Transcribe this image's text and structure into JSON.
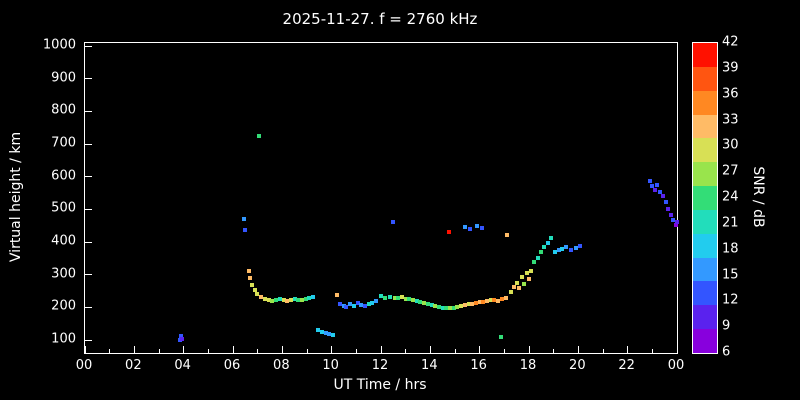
{
  "title": "2025-11-27. f = 2760 kHz",
  "colors": {
    "background": "#000000",
    "foreground": "#ffffff"
  },
  "chart_data": {
    "type": "scatter",
    "title": "2025-11-27. f = 2760 kHz",
    "xlabel": "UT Time / hrs",
    "ylabel": "Virtual height / km",
    "xlim": [
      0,
      24
    ],
    "ylim": [
      100,
      1000
    ],
    "grid": false,
    "x_tick_hours": [
      0,
      2,
      4,
      6,
      8,
      10,
      12,
      14,
      16,
      18,
      20,
      22,
      24
    ],
    "x_tick_labels": [
      "00",
      "02",
      "04",
      "06",
      "08",
      "10",
      "12",
      "14",
      "16",
      "18",
      "20",
      "22",
      "00"
    ],
    "y_ticks": [
      100,
      200,
      300,
      400,
      500,
      600,
      700,
      800,
      900,
      1000
    ],
    "colorbar": {
      "label": "SNR / dB",
      "ticks": [
        6,
        9,
        12,
        15,
        18,
        21,
        24,
        27,
        30,
        33,
        36,
        39,
        42
      ],
      "palette": [
        {
          "v": 6,
          "color": "#8800dd"
        },
        {
          "v": 9,
          "color": "#5a22ee"
        },
        {
          "v": 12,
          "color": "#3355ff"
        },
        {
          "v": 15,
          "color": "#3399ff"
        },
        {
          "v": 18,
          "color": "#22ccee"
        },
        {
          "v": 21,
          "color": "#22ddbb"
        },
        {
          "v": 24,
          "color": "#33dd77"
        },
        {
          "v": 27,
          "color": "#99e44c"
        },
        {
          "v": 30,
          "color": "#d8e055"
        },
        {
          "v": 33,
          "color": "#ffbb66"
        },
        {
          "v": 36,
          "color": "#ff8822"
        },
        {
          "v": 39,
          "color": "#ff5511"
        },
        {
          "v": 42,
          "color": "#ff1100"
        }
      ]
    },
    "points": [
      [
        3.85,
        100,
        12
      ],
      [
        3.9,
        112,
        12
      ],
      [
        3.95,
        104,
        9
      ],
      [
        6.45,
        470,
        15
      ],
      [
        6.5,
        438,
        12
      ],
      [
        6.65,
        310,
        33
      ],
      [
        6.7,
        290,
        33
      ],
      [
        6.78,
        268,
        30
      ],
      [
        6.88,
        252,
        30
      ],
      [
        6.98,
        242,
        30
      ],
      [
        7.05,
        725,
        24
      ],
      [
        7.15,
        232,
        33
      ],
      [
        7.3,
        226,
        30
      ],
      [
        7.45,
        222,
        30
      ],
      [
        7.6,
        220,
        27
      ],
      [
        7.75,
        221,
        24
      ],
      [
        7.9,
        224,
        21
      ],
      [
        8.05,
        221,
        30
      ],
      [
        8.2,
        219,
        33
      ],
      [
        8.35,
        221,
        30
      ],
      [
        8.5,
        224,
        21
      ],
      [
        8.65,
        221,
        24
      ],
      [
        8.8,
        223,
        27
      ],
      [
        8.95,
        226,
        24
      ],
      [
        9.1,
        228,
        21
      ],
      [
        9.25,
        231,
        18
      ],
      [
        9.45,
        130,
        18
      ],
      [
        9.6,
        126,
        18
      ],
      [
        9.75,
        121,
        15
      ],
      [
        9.9,
        118,
        15
      ],
      [
        10.05,
        115,
        18
      ],
      [
        10.2,
        238,
        33
      ],
      [
        10.35,
        210,
        12
      ],
      [
        10.5,
        205,
        15
      ],
      [
        10.6,
        200,
        12
      ],
      [
        10.75,
        209,
        15
      ],
      [
        10.9,
        204,
        18
      ],
      [
        11.05,
        213,
        12
      ],
      [
        11.2,
        208,
        15
      ],
      [
        11.35,
        204,
        12
      ],
      [
        11.5,
        209,
        21
      ],
      [
        11.65,
        214,
        18
      ],
      [
        11.8,
        219,
        15
      ],
      [
        12.0,
        236,
        21
      ],
      [
        12.15,
        230,
        24
      ],
      [
        12.5,
        460,
        12
      ],
      [
        12.35,
        232,
        21
      ],
      [
        12.55,
        230,
        27
      ],
      [
        12.7,
        229,
        24
      ],
      [
        12.85,
        231,
        30
      ],
      [
        13.0,
        227,
        27
      ],
      [
        13.15,
        224,
        24
      ],
      [
        13.3,
        222,
        27
      ],
      [
        13.45,
        219,
        21
      ],
      [
        13.6,
        216,
        24
      ],
      [
        13.75,
        213,
        27
      ],
      [
        13.9,
        210,
        24
      ],
      [
        14.05,
        207,
        21
      ],
      [
        14.2,
        203,
        27
      ],
      [
        14.35,
        200,
        24
      ],
      [
        14.5,
        198,
        21
      ],
      [
        14.65,
        197,
        24
      ],
      [
        14.8,
        197,
        27
      ],
      [
        14.95,
        198,
        24
      ],
      [
        14.75,
        430,
        42
      ],
      [
        15.4,
        446,
        15
      ],
      [
        15.6,
        440,
        12
      ],
      [
        15.9,
        450,
        15
      ],
      [
        16.1,
        444,
        12
      ],
      [
        15.1,
        200,
        27
      ],
      [
        15.25,
        203,
        30
      ],
      [
        15.4,
        206,
        33
      ],
      [
        15.55,
        209,
        30
      ],
      [
        15.7,
        211,
        33
      ],
      [
        15.85,
        213,
        36
      ],
      [
        16.0,
        215,
        33
      ],
      [
        16.15,
        217,
        36
      ],
      [
        16.3,
        219,
        33
      ],
      [
        16.45,
        221,
        30
      ],
      [
        16.6,
        223,
        36
      ],
      [
        16.75,
        220,
        33
      ],
      [
        16.9,
        225,
        36
      ],
      [
        17.05,
        230,
        33
      ],
      [
        16.85,
        110,
        24
      ],
      [
        17.1,
        420,
        33
      ],
      [
        17.25,
        248,
        30
      ],
      [
        17.4,
        262,
        33
      ],
      [
        17.5,
        276,
        30
      ],
      [
        17.6,
        258,
        33
      ],
      [
        17.7,
        292,
        30
      ],
      [
        17.8,
        270,
        27
      ],
      [
        17.9,
        305,
        30
      ],
      [
        18.0,
        288,
        33
      ],
      [
        18.1,
        312,
        30
      ],
      [
        18.2,
        338,
        24
      ],
      [
        18.35,
        352,
        21
      ],
      [
        18.5,
        368,
        24
      ],
      [
        18.6,
        384,
        21
      ],
      [
        18.75,
        398,
        18
      ],
      [
        18.9,
        412,
        21
      ],
      [
        19.05,
        368,
        18
      ],
      [
        19.2,
        374,
        15
      ],
      [
        19.35,
        379,
        18
      ],
      [
        19.5,
        384,
        15
      ],
      [
        19.7,
        376,
        12
      ],
      [
        19.9,
        382,
        15
      ],
      [
        20.05,
        388,
        12
      ],
      [
        22.9,
        586,
        12
      ],
      [
        23.0,
        572,
        12
      ],
      [
        23.1,
        560,
        9
      ],
      [
        23.2,
        576,
        12
      ],
      [
        23.3,
        554,
        12
      ],
      [
        23.45,
        540,
        9
      ],
      [
        23.55,
        522,
        12
      ],
      [
        23.65,
        502,
        9
      ],
      [
        23.75,
        482,
        9
      ],
      [
        23.85,
        466,
        12
      ],
      [
        23.95,
        452,
        6
      ],
      [
        24.0,
        462,
        9
      ]
    ]
  }
}
